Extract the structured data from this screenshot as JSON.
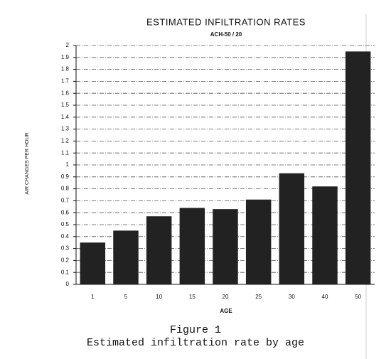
{
  "chart_data": {
    "type": "bar",
    "title": "ESTIMATED INFILTRATION RATES",
    "subtitle": "ACH-50 / 20",
    "x_label": "AGE",
    "y_label": "AIR CHANGES PER HOUR",
    "categories": [
      "1",
      "5",
      "10",
      "15",
      "20",
      "25",
      "30",
      "40",
      "50"
    ],
    "values": [
      0.35,
      0.45,
      0.57,
      0.64,
      0.63,
      0.71,
      0.93,
      0.82,
      1.95
    ],
    "color": "#222222",
    "ylim": [
      0,
      2
    ],
    "yticks": [
      0,
      0.1,
      0.2,
      0.3,
      0.4,
      0.5,
      0.6,
      0.7,
      0.8,
      0.9,
      1,
      1.1,
      1.2,
      1.3,
      1.4,
      1.5,
      1.6,
      1.7,
      1.8,
      1.9,
      2
    ],
    "grid": true,
    "caption": [
      "Figure 1",
      "Estimated infiltration rate by age"
    ]
  }
}
